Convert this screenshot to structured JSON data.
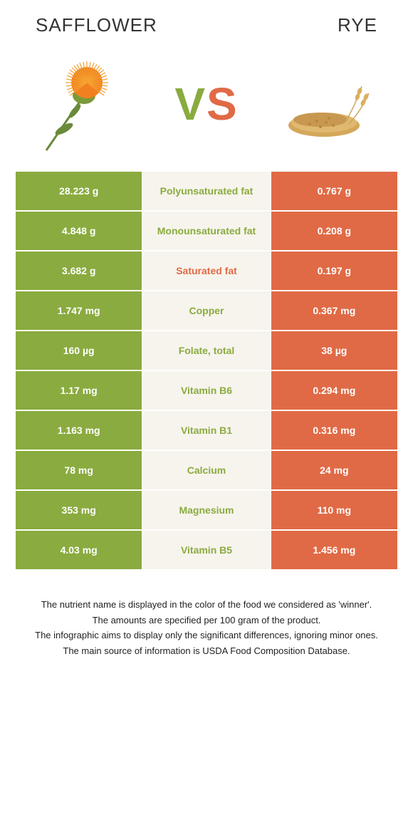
{
  "header": {
    "left": "SAFFLOWER",
    "right": "RYE"
  },
  "vs": {
    "v": "V",
    "s": "S"
  },
  "colors": {
    "green": "#8aab3f",
    "orange": "#e06a46",
    "mid_bg": "#f7f4ed"
  },
  "rows": [
    {
      "left": "28.223 g",
      "label": "Polyunsaturated fat",
      "right": "0.767 g",
      "winner": "green"
    },
    {
      "left": "4.848 g",
      "label": "Monounsaturated fat",
      "right": "0.208 g",
      "winner": "green"
    },
    {
      "left": "3.682 g",
      "label": "Saturated fat",
      "right": "0.197 g",
      "winner": "orange"
    },
    {
      "left": "1.747 mg",
      "label": "Copper",
      "right": "0.367 mg",
      "winner": "green"
    },
    {
      "left": "160 µg",
      "label": "Folate, total",
      "right": "38 µg",
      "winner": "green"
    },
    {
      "left": "1.17 mg",
      "label": "Vitamin B6",
      "right": "0.294 mg",
      "winner": "green"
    },
    {
      "left": "1.163 mg",
      "label": "Vitamin B1",
      "right": "0.316 mg",
      "winner": "green"
    },
    {
      "left": "78 mg",
      "label": "Calcium",
      "right": "24 mg",
      "winner": "green"
    },
    {
      "left": "353 mg",
      "label": "Magnesium",
      "right": "110 mg",
      "winner": "green"
    },
    {
      "left": "4.03 mg",
      "label": "Vitamin B5",
      "right": "1.456 mg",
      "winner": "green"
    }
  ],
  "footer": {
    "l1": "The nutrient name is displayed in the color of the food we considered as 'winner'.",
    "l2": "The amounts are specified per 100 gram of the product.",
    "l3": "The infographic aims to display only the significant differences, ignoring minor ones.",
    "l4": "The main source of information is USDA Food Composition Database."
  }
}
